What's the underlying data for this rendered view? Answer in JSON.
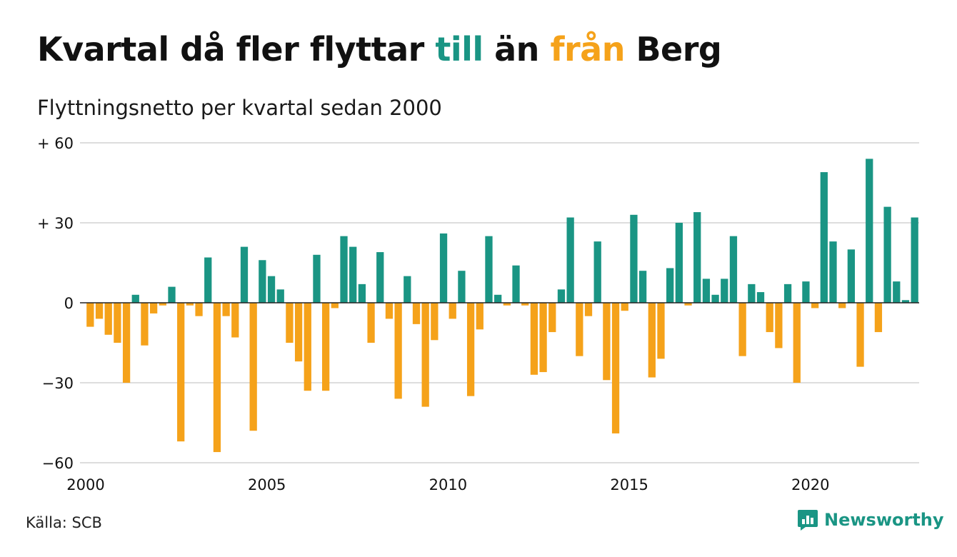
{
  "header": {
    "title_part1": "Kvartal då fler flyttar ",
    "title_till": "till",
    "title_part2": " än ",
    "title_fran": "från",
    "title_part3": " Berg",
    "subtitle": "Flyttningsnetto per kvartal sedan 2000"
  },
  "footer": {
    "source": "Källa: SCB",
    "brand": "Newsworthy",
    "brand_icon": "bar-chart-bubble-icon"
  },
  "colors": {
    "positive": "#1a9584",
    "negative": "#f5a21a",
    "grid": "#dddddd",
    "zero_line": "#222222",
    "text": "#111111"
  },
  "chart_data": {
    "type": "bar",
    "title": "Kvartal då fler flyttar till än från Berg",
    "subtitle": "Flyttningsnetto per kvartal sedan 2000",
    "x_start_year": 2000,
    "quarters_per_year": 4,
    "x_ticks": [
      "2000",
      "2005",
      "2010",
      "2015",
      "2020"
    ],
    "y_ticks": [
      {
        "value": 60,
        "label": "+ 60"
      },
      {
        "value": 30,
        "label": "+ 30"
      },
      {
        "value": 0,
        "label": "0"
      },
      {
        "value": -30,
        "label": "−30"
      },
      {
        "value": -60,
        "label": "−60"
      }
    ],
    "ylim": [
      -60,
      60
    ],
    "grid": true,
    "values": [
      -9,
      -6,
      -12,
      -15,
      -30,
      3,
      -16,
      -4,
      -1,
      6,
      -52,
      -1,
      -5,
      17,
      -56,
      -5,
      -13,
      21,
      -48,
      16,
      10,
      5,
      -15,
      -22,
      -33,
      18,
      -33,
      -2,
      25,
      21,
      7,
      -15,
      19,
      -6,
      -36,
      10,
      -8,
      -39,
      -14,
      26,
      -6,
      12,
      -35,
      -10,
      25,
      3,
      -1,
      14,
      -1,
      -27,
      -26,
      -11,
      5,
      32,
      -20,
      -5,
      23,
      -29,
      -49,
      -3,
      33,
      12,
      -28,
      -21,
      13,
      30,
      -1,
      34,
      9,
      3,
      9,
      25,
      -20,
      7,
      4,
      -11,
      -17,
      7,
      -30,
      8,
      -2,
      49,
      23,
      -2,
      20,
      -24,
      54,
      -11,
      36,
      8,
      1,
      32
    ]
  }
}
